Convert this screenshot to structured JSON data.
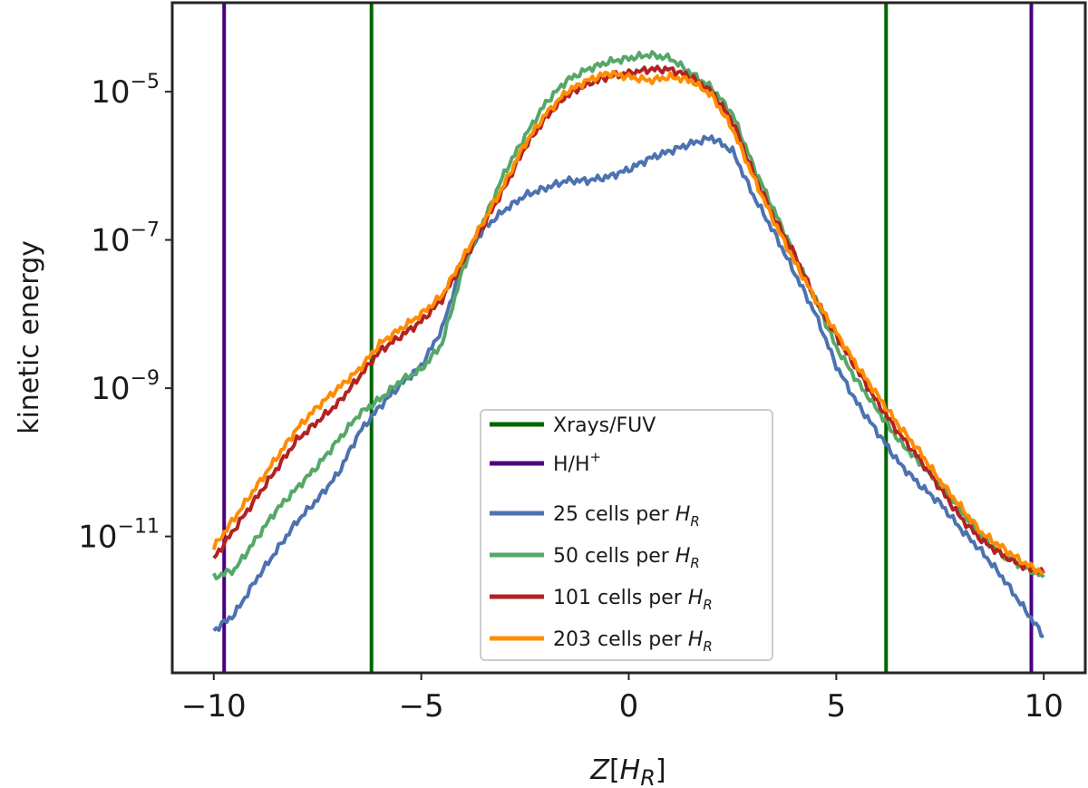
{
  "chart_data": {
    "type": "line",
    "title": "",
    "xlabel": "Z[H_R]",
    "xlabel_parts": {
      "main": "Z",
      "open": "[",
      "sym": "H",
      "sub": "R",
      "close": "]"
    },
    "ylabel": "kinetic energy",
    "xlim": [
      -11,
      11
    ],
    "ylim_log10": [
      -12.84,
      -3.8
    ],
    "yscale": "log",
    "xticks": [
      {
        "value": -10,
        "label": "−10"
      },
      {
        "value": -5,
        "label": "−5"
      },
      {
        "value": 0,
        "label": "0"
      },
      {
        "value": 5,
        "label": "5"
      },
      {
        "value": 10,
        "label": "10"
      }
    ],
    "yticks": [
      {
        "exp": -5,
        "base": "10",
        "sup": "−5"
      },
      {
        "exp": -7,
        "base": "10",
        "sup": "−7"
      },
      {
        "exp": -9,
        "base": "10",
        "sup": "−9"
      },
      {
        "exp": -11,
        "base": "10",
        "sup": "−11"
      }
    ],
    "grid": false,
    "legend_position": "bottom-center",
    "vlines": [
      {
        "name": "Xrays/FUV",
        "label": "Xrays/FUV",
        "color": "#006400",
        "x": [
          -6.2,
          6.2
        ]
      },
      {
        "name": "H/H+",
        "label_main": "H/H",
        "label_sup": "+",
        "color": "#4b0082",
        "x": [
          -9.75,
          9.7
        ]
      }
    ],
    "series": [
      {
        "name": "25 cells per H_R",
        "label_prefix": "25 cells per ",
        "label_sym": "H",
        "label_sub": "R",
        "color": "#4c72b0",
        "x": [
          -10,
          -9.5,
          -9,
          -8.5,
          -8,
          -7.5,
          -7,
          -6.5,
          -6,
          -5.5,
          -5,
          -4.5,
          -4,
          -3.5,
          -3,
          -2.5,
          -2,
          -1.5,
          -1,
          -0.5,
          0,
          0.5,
          1,
          1.5,
          2,
          2.5,
          3,
          3.5,
          4,
          4.5,
          5,
          5.5,
          6,
          6.5,
          7,
          7.5,
          8,
          8.5,
          9,
          9.5,
          10
        ],
        "log10_y": [
          -12.27,
          -12.05,
          -11.6,
          -11.2,
          -10.8,
          -10.5,
          -10.15,
          -9.6,
          -9.25,
          -8.95,
          -8.7,
          -8.2,
          -7.3,
          -6.85,
          -6.6,
          -6.4,
          -6.3,
          -6.2,
          -6.2,
          -6.15,
          -6.05,
          -5.9,
          -5.8,
          -5.7,
          -5.62,
          -5.8,
          -6.4,
          -6.9,
          -7.45,
          -8.0,
          -8.7,
          -9.2,
          -9.6,
          -10.0,
          -10.3,
          -10.55,
          -10.9,
          -11.2,
          -11.55,
          -11.95,
          -12.35
        ]
      },
      {
        "name": "50 cells per H_R",
        "label_prefix": "50 cells per ",
        "label_sym": "H",
        "label_sub": "R",
        "color": "#55a868",
        "x": [
          -10,
          -9.5,
          -9,
          -8.5,
          -8,
          -7.5,
          -7,
          -6.5,
          -6,
          -5.5,
          -5,
          -4.5,
          -4,
          -3.5,
          -3,
          -2.5,
          -2,
          -1.5,
          -1,
          -0.5,
          0,
          0.5,
          1,
          1.5,
          2,
          2.5,
          3,
          3.5,
          4,
          4.5,
          5,
          5.5,
          6,
          6.5,
          7,
          7.5,
          8,
          8.5,
          9,
          9.5,
          10
        ],
        "log10_y": [
          -11.55,
          -11.45,
          -11.05,
          -10.65,
          -10.35,
          -10.05,
          -9.7,
          -9.35,
          -9.15,
          -8.9,
          -8.75,
          -8.4,
          -7.4,
          -6.75,
          -6.1,
          -5.6,
          -5.15,
          -4.85,
          -4.7,
          -4.6,
          -4.55,
          -4.5,
          -4.55,
          -4.75,
          -4.95,
          -5.3,
          -6.0,
          -6.6,
          -7.2,
          -7.8,
          -8.45,
          -8.9,
          -9.3,
          -9.7,
          -10.0,
          -10.3,
          -10.65,
          -11.0,
          -11.25,
          -11.4,
          -11.55
        ]
      },
      {
        "name": "101 cells per H_R",
        "label_prefix": "101 cells per ",
        "label_sym": "H",
        "label_sub": "R",
        "color": "#b22222",
        "x": [
          -10,
          -9.5,
          -9,
          -8.5,
          -8,
          -7.5,
          -7,
          -6.5,
          -6,
          -5.5,
          -5,
          -4.5,
          -4,
          -3.5,
          -3,
          -2.5,
          -2,
          -1.5,
          -1,
          -0.5,
          0,
          0.5,
          1,
          1.5,
          2,
          2.5,
          3,
          3.5,
          4,
          4.5,
          5,
          5.5,
          6,
          6.5,
          7,
          7.5,
          8,
          8.5,
          9,
          9.5,
          10
        ],
        "log10_y": [
          -11.3,
          -10.9,
          -10.5,
          -10.1,
          -9.7,
          -9.45,
          -9.2,
          -8.85,
          -8.5,
          -8.3,
          -8.1,
          -7.8,
          -7.3,
          -6.8,
          -6.3,
          -5.75,
          -5.35,
          -5.05,
          -4.9,
          -4.8,
          -4.75,
          -4.7,
          -4.7,
          -4.8,
          -5.0,
          -5.4,
          -6.1,
          -6.7,
          -7.2,
          -7.8,
          -8.3,
          -8.75,
          -9.2,
          -9.6,
          -9.95,
          -10.35,
          -10.75,
          -11.05,
          -11.25,
          -11.4,
          -11.5
        ]
      },
      {
        "name": "203 cells per H_R",
        "label_prefix": "203 cells per ",
        "label_sym": "H",
        "label_sub": "R",
        "color": "#ff8c00",
        "x": [
          -10,
          -9.5,
          -9,
          -8.5,
          -8,
          -7.5,
          -7,
          -6.5,
          -6,
          -5.5,
          -5,
          -4.5,
          -4,
          -3.5,
          -3,
          -2.5,
          -2,
          -1.5,
          -1,
          -0.5,
          0,
          0.5,
          1,
          1.5,
          2,
          2.5,
          3,
          3.5,
          4,
          4.5,
          5,
          5.5,
          6,
          6.5,
          7,
          7.5,
          8,
          8.5,
          9,
          9.5,
          10
        ],
        "log10_y": [
          -11.15,
          -10.75,
          -10.35,
          -9.95,
          -9.55,
          -9.25,
          -9.0,
          -8.75,
          -8.4,
          -8.2,
          -8.0,
          -7.75,
          -7.25,
          -6.75,
          -6.25,
          -5.7,
          -5.3,
          -5.0,
          -4.85,
          -4.75,
          -4.8,
          -4.85,
          -4.8,
          -4.85,
          -5.05,
          -5.5,
          -6.15,
          -6.75,
          -7.3,
          -7.8,
          -8.25,
          -8.7,
          -9.1,
          -9.5,
          -9.85,
          -10.25,
          -10.6,
          -10.95,
          -11.15,
          -11.35,
          -11.5
        ]
      }
    ]
  }
}
